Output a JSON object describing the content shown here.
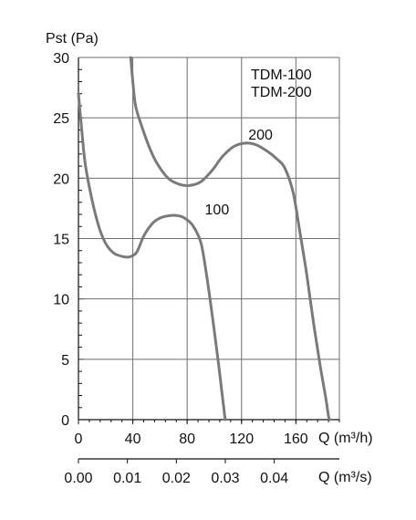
{
  "chart_data": {
    "type": "line",
    "y_axis": {
      "label": "Pst (Pa)",
      "ticks": [
        "0",
        "5",
        "10",
        "15",
        "20",
        "25",
        "30"
      ],
      "range": [
        0,
        30
      ],
      "minor_step": 1
    },
    "x_axis": {
      "label": "Q (m³/h)",
      "ticks": [
        "0",
        "40",
        "80",
        "120",
        "160"
      ],
      "tick_values": [
        0,
        40,
        80,
        120,
        160
      ],
      "range": [
        0,
        192
      ],
      "minor_step": 8
    },
    "x_axis_secondary": {
      "label": "Q (m³/s)",
      "ticks": [
        "0.00",
        "0.01",
        "0.02",
        "0.03",
        "0.04"
      ],
      "tick_values": [
        0,
        0.01,
        0.02,
        0.03,
        0.04
      ],
      "range": [
        0,
        0.0533
      ]
    },
    "models": [
      "TDM-100",
      "TDM-200"
    ],
    "grid": true,
    "colors": {
      "curve": "#7a7a7a",
      "grid": "#6e6e6e",
      "axis": "#111111"
    },
    "series": [
      {
        "name": "100",
        "label_at": {
          "x": 93,
          "y": 17.0
        },
        "points": [
          [
            0,
            27
          ],
          [
            2,
            24.5
          ],
          [
            5,
            21.2
          ],
          [
            10,
            18.2
          ],
          [
            15,
            16
          ],
          [
            20,
            14.6
          ],
          [
            26,
            13.8
          ],
          [
            33,
            13.5
          ],
          [
            38,
            13.5
          ],
          [
            43,
            13.9
          ],
          [
            48,
            15.2
          ],
          [
            54,
            16.2
          ],
          [
            60,
            16.7
          ],
          [
            67,
            16.9
          ],
          [
            73,
            16.9
          ],
          [
            78,
            16.7
          ],
          [
            84,
            16.1
          ],
          [
            90,
            14.7
          ],
          [
            94,
            12.2
          ],
          [
            98,
            9.0
          ],
          [
            102,
            5.6
          ],
          [
            105,
            2.8
          ],
          [
            107,
            0.9
          ],
          [
            108,
            0
          ]
        ]
      },
      {
        "name": "200",
        "label_at": {
          "x": 125,
          "y": 23.2
        },
        "points": [
          [
            38.5,
            30
          ],
          [
            40,
            28
          ],
          [
            42,
            26
          ],
          [
            46,
            24.5
          ],
          [
            52,
            22.6
          ],
          [
            58,
            21.2
          ],
          [
            66,
            20.0
          ],
          [
            74,
            19.5
          ],
          [
            82,
            19.4
          ],
          [
            90,
            19.7
          ],
          [
            98,
            20.6
          ],
          [
            106,
            21.8
          ],
          [
            114,
            22.6
          ],
          [
            122,
            22.9
          ],
          [
            130,
            22.8
          ],
          [
            138,
            22.3
          ],
          [
            146,
            21.6
          ],
          [
            152,
            20.8
          ],
          [
            158,
            18.8
          ],
          [
            163,
            15.5
          ],
          [
            168,
            12.0
          ],
          [
            173,
            8.0
          ],
          [
            178,
            4.4
          ],
          [
            182,
            1.8
          ],
          [
            184,
            0.3
          ],
          [
            185,
            0
          ]
        ]
      }
    ]
  }
}
